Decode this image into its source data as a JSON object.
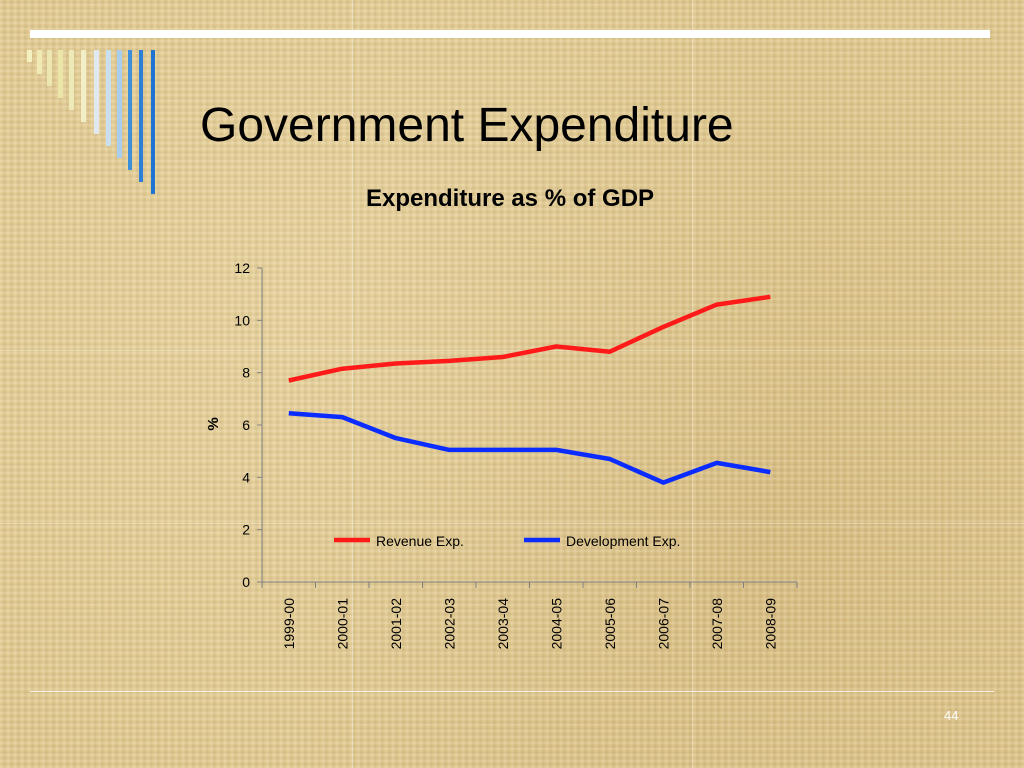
{
  "slide": {
    "title": "Government Expenditure",
    "page_number": "44"
  },
  "colors": {
    "revenue": "#ff1a1a",
    "development": "#0a2cff",
    "deco_bars": [
      "#f5f0c0",
      "#f0ebb5",
      "#ece6b0",
      "#ebe6a8",
      "#eeeab8",
      "#f2efc8",
      "#dfe9ef",
      "#c8dff0",
      "#a9cdef",
      "#3d8fdc",
      "#2c7fd6",
      "#1e74d0"
    ]
  },
  "chart_data": {
    "type": "line",
    "title": "Expenditure as % of GDP",
    "xlabel": "",
    "ylabel": "%",
    "categories": [
      "1999-00",
      "2000-01",
      "2001-02",
      "2002-03",
      "2003-04",
      "2004-05",
      "2005-06",
      "2006-07",
      "2007-08",
      "2008-09"
    ],
    "ylim": [
      0,
      12
    ],
    "yticks": [
      "0",
      "2",
      "4",
      "6",
      "8",
      "10",
      "12"
    ],
    "grid": false,
    "legend_position": "bottom-inside",
    "series": [
      {
        "name": "Revenue Exp.",
        "values": [
          7.7,
          8.15,
          8.35,
          8.45,
          8.6,
          9.0,
          8.8,
          9.75,
          10.6,
          10.9
        ]
      },
      {
        "name": "Development Exp.",
        "values": [
          6.45,
          6.3,
          5.5,
          5.05,
          5.05,
          5.05,
          4.7,
          3.8,
          4.55,
          4.2
        ]
      }
    ]
  }
}
